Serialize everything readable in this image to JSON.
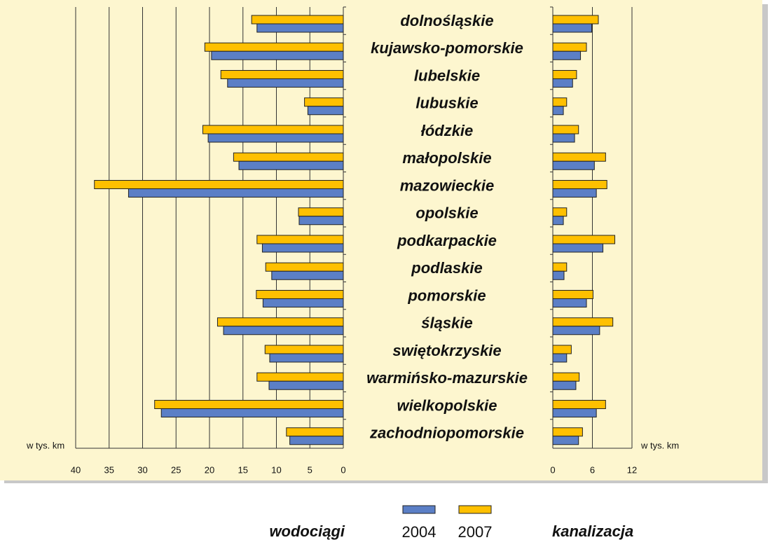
{
  "chart_data": [
    {
      "type": "bar",
      "orientation": "horizontal",
      "title": "wodociągi",
      "xlabel": "w tys. km",
      "xlim": [
        0,
        40
      ],
      "xticks": [
        0,
        5,
        10,
        15,
        20,
        25,
        30,
        35,
        40
      ],
      "reversed": true,
      "categories": [
        "dolnośląskie",
        "kujawsko-pomorskie",
        "lubelskie",
        "lubuskie",
        "łódzkie",
        "małopolskie",
        "mazowieckie",
        "opolskie",
        "podkarpackie",
        "podlaskie",
        "pomorskie",
        "śląskie",
        "swiętokrzyskie",
        "warmińsko-mazurskie",
        "wielkopolskie",
        "zachodniopomorskie"
      ],
      "series": [
        {
          "name": "2004",
          "color": "#5b7fc6",
          "values": [
            12.9,
            19.7,
            17.3,
            5.3,
            20.2,
            15.6,
            32.1,
            6.6,
            12.1,
            10.7,
            12.0,
            17.9,
            11.0,
            11.1,
            27.2,
            8.0
          ]
        },
        {
          "name": "2007",
          "color": "#ffc000",
          "values": [
            13.7,
            20.7,
            18.3,
            5.8,
            21.0,
            16.4,
            37.2,
            6.7,
            12.9,
            11.6,
            13.0,
            18.8,
            11.7,
            12.9,
            28.2,
            8.5
          ]
        }
      ]
    },
    {
      "type": "bar",
      "orientation": "horizontal",
      "title": "kanalizacja",
      "xlabel": "w tys. km",
      "xlim": [
        0,
        12
      ],
      "xticks": [
        0,
        6,
        12
      ],
      "series": [
        {
          "color": "#5b7fc6",
          "values": [
            5.9,
            4.2,
            3.0,
            1.6,
            3.3,
            6.3,
            6.6,
            1.6,
            7.6,
            1.7,
            5.1,
            7.1,
            2.1,
            3.5,
            6.6,
            3.9
          ]
        },
        {
          "color": "#ffc000",
          "values": [
            6.9,
            5.1,
            3.6,
            2.1,
            3.9,
            8.0,
            8.2,
            2.1,
            9.4,
            2.1,
            6.1,
            9.1,
            2.8,
            4.0,
            8.0,
            4.5
          ]
        }
      ]
    }
  ]
}
